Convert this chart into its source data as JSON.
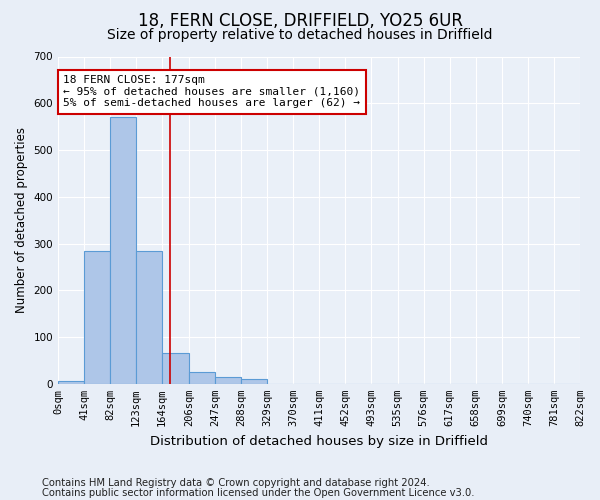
{
  "title1": "18, FERN CLOSE, DRIFFIELD, YO25 6UR",
  "title2": "Size of property relative to detached houses in Driffield",
  "xlabel": "Distribution of detached houses by size in Driffield",
  "ylabel": "Number of detached properties",
  "footnote1": "Contains HM Land Registry data © Crown copyright and database right 2024.",
  "footnote2": "Contains public sector information licensed under the Open Government Licence v3.0.",
  "bin_edges": [
    0,
    41,
    82,
    123,
    164,
    206,
    247,
    288,
    329,
    370,
    411,
    452,
    493,
    535,
    576,
    617,
    658,
    699,
    740,
    781,
    822
  ],
  "bar_heights": [
    5,
    285,
    570,
    285,
    65,
    25,
    15,
    10,
    0,
    0,
    0,
    0,
    0,
    0,
    0,
    0,
    0,
    0,
    0,
    0
  ],
  "bar_color": "#aec6e8",
  "bar_edge_color": "#5b9bd5",
  "property_size": 177,
  "red_line_color": "#cc0000",
  "annotation_text": "18 FERN CLOSE: 177sqm\n← 95% of detached houses are smaller (1,160)\n5% of semi-detached houses are larger (62) →",
  "annotation_box_color": "#ffffff",
  "annotation_box_edge": "#cc0000",
  "ylim": [
    0,
    700
  ],
  "yticks": [
    0,
    100,
    200,
    300,
    400,
    500,
    600,
    700
  ],
  "bg_color": "#e8eef7",
  "plot_bg_color": "#eaf0f8",
  "grid_color": "#ffffff",
  "title1_fontsize": 12,
  "title2_fontsize": 10,
  "tick_label_fontsize": 7.5,
  "ylabel_fontsize": 8.5,
  "xlabel_fontsize": 9.5,
  "footnote_fontsize": 7.2,
  "annotation_fontsize": 8.0
}
